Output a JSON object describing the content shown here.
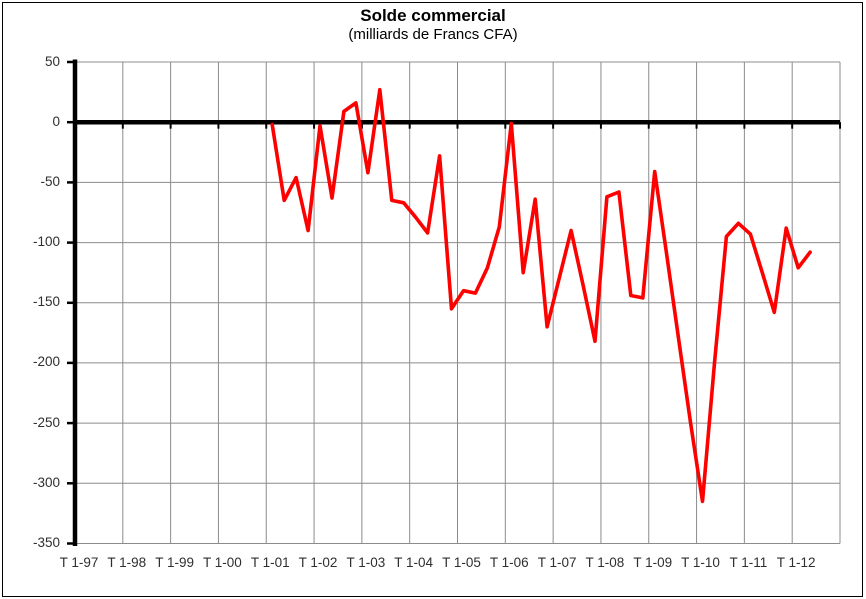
{
  "chart_data": {
    "type": "line",
    "title": "Solde commercial",
    "subtitle": "(milliards de Francs CFA)",
    "xlabel": "",
    "ylabel": "",
    "ylim": [
      -350,
      50
    ],
    "grid": true,
    "legend": "none",
    "y_tick_values": [
      50,
      0,
      -50,
      -100,
      -150,
      -200,
      -250,
      -300,
      -350
    ],
    "x_tick_labels": [
      "T 1-97",
      "T 1-98",
      "T 1-99",
      "T 1-00",
      "T 1-01",
      "T 1-02",
      "T 1-03",
      "T 1-04",
      "T 1-05",
      "T 1-06",
      "T 1-07",
      "T 1-08",
      "T 1-09",
      "T 1-10",
      "T 1-11",
      "T 1-12"
    ],
    "quarters_per_label": 4,
    "series": [
      {
        "name": "Solde commercial",
        "color": "#FF0000",
        "first_point": "T1-2001",
        "quarters": [
          "T1-01",
          "T2-01",
          "T3-01",
          "T4-01",
          "T1-02",
          "T2-02",
          "T3-02",
          "T4-02",
          "T1-03",
          "T2-03",
          "T3-03",
          "T4-03",
          "T1-04",
          "T2-04",
          "T3-04",
          "T4-04",
          "T1-05",
          "T2-05",
          "T3-05",
          "T4-05",
          "T1-06",
          "T2-06",
          "T3-06",
          "T4-06",
          "T1-07",
          "T2-07",
          "T3-07",
          "T4-07",
          "T1-08",
          "T2-08",
          "T3-08",
          "T4-08",
          "T1-09",
          "T2-09",
          "T3-09",
          "T4-09",
          "T1-10",
          "T2-10",
          "T3-10",
          "T4-10",
          "T1-11",
          "T2-11",
          "T3-11",
          "T4-11",
          "T1-12",
          "T2-12"
        ],
        "values": [
          -2,
          -65,
          -46,
          -90,
          -3,
          -63,
          9,
          16,
          -42,
          27,
          -65,
          -67,
          -79,
          -92,
          -28,
          -155,
          -140,
          -142,
          -121,
          -87,
          -1,
          -125,
          -64,
          -170,
          -130,
          -90,
          -135,
          -182,
          -62,
          -58,
          -144,
          -146,
          -41,
          -110,
          -180,
          -250,
          -315,
          -200,
          -95,
          -84,
          -93,
          -125,
          -158,
          -88,
          -121,
          -108
        ]
      }
    ]
  }
}
